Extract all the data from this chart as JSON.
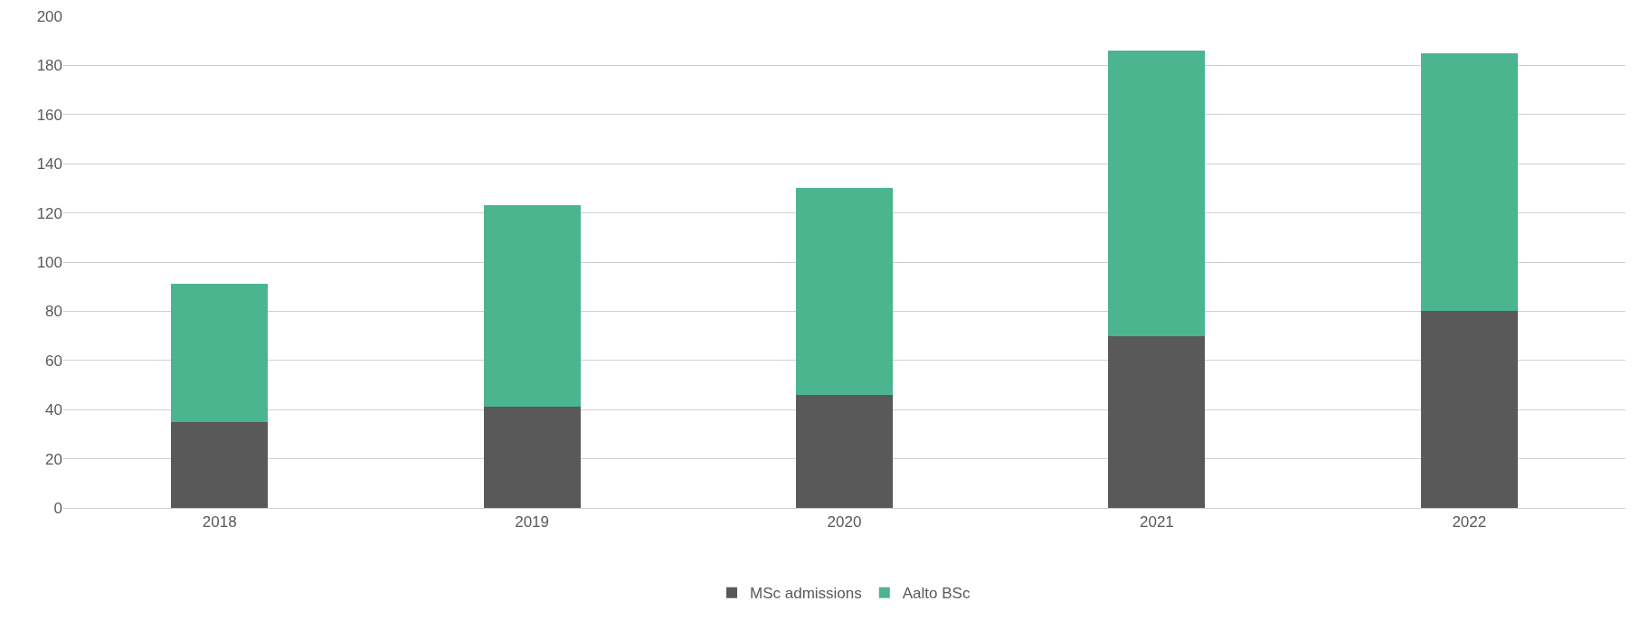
{
  "chart_data": {
    "type": "bar",
    "stacked": true,
    "categories": [
      "2018",
      "2019",
      "2020",
      "2021",
      "2022"
    ],
    "series": [
      {
        "name": "MSc admissions",
        "color": "#595959",
        "values": [
          35,
          41,
          46,
          70,
          80
        ]
      },
      {
        "name": "Aalto BSc",
        "color": "#4ab58e",
        "values": [
          56,
          82,
          84,
          116,
          105
        ]
      }
    ],
    "ylim": [
      0,
      200
    ],
    "yticks": [
      0,
      20,
      40,
      60,
      80,
      100,
      120,
      140,
      160,
      180,
      200
    ],
    "grid": "y",
    "legend": "bottom"
  }
}
